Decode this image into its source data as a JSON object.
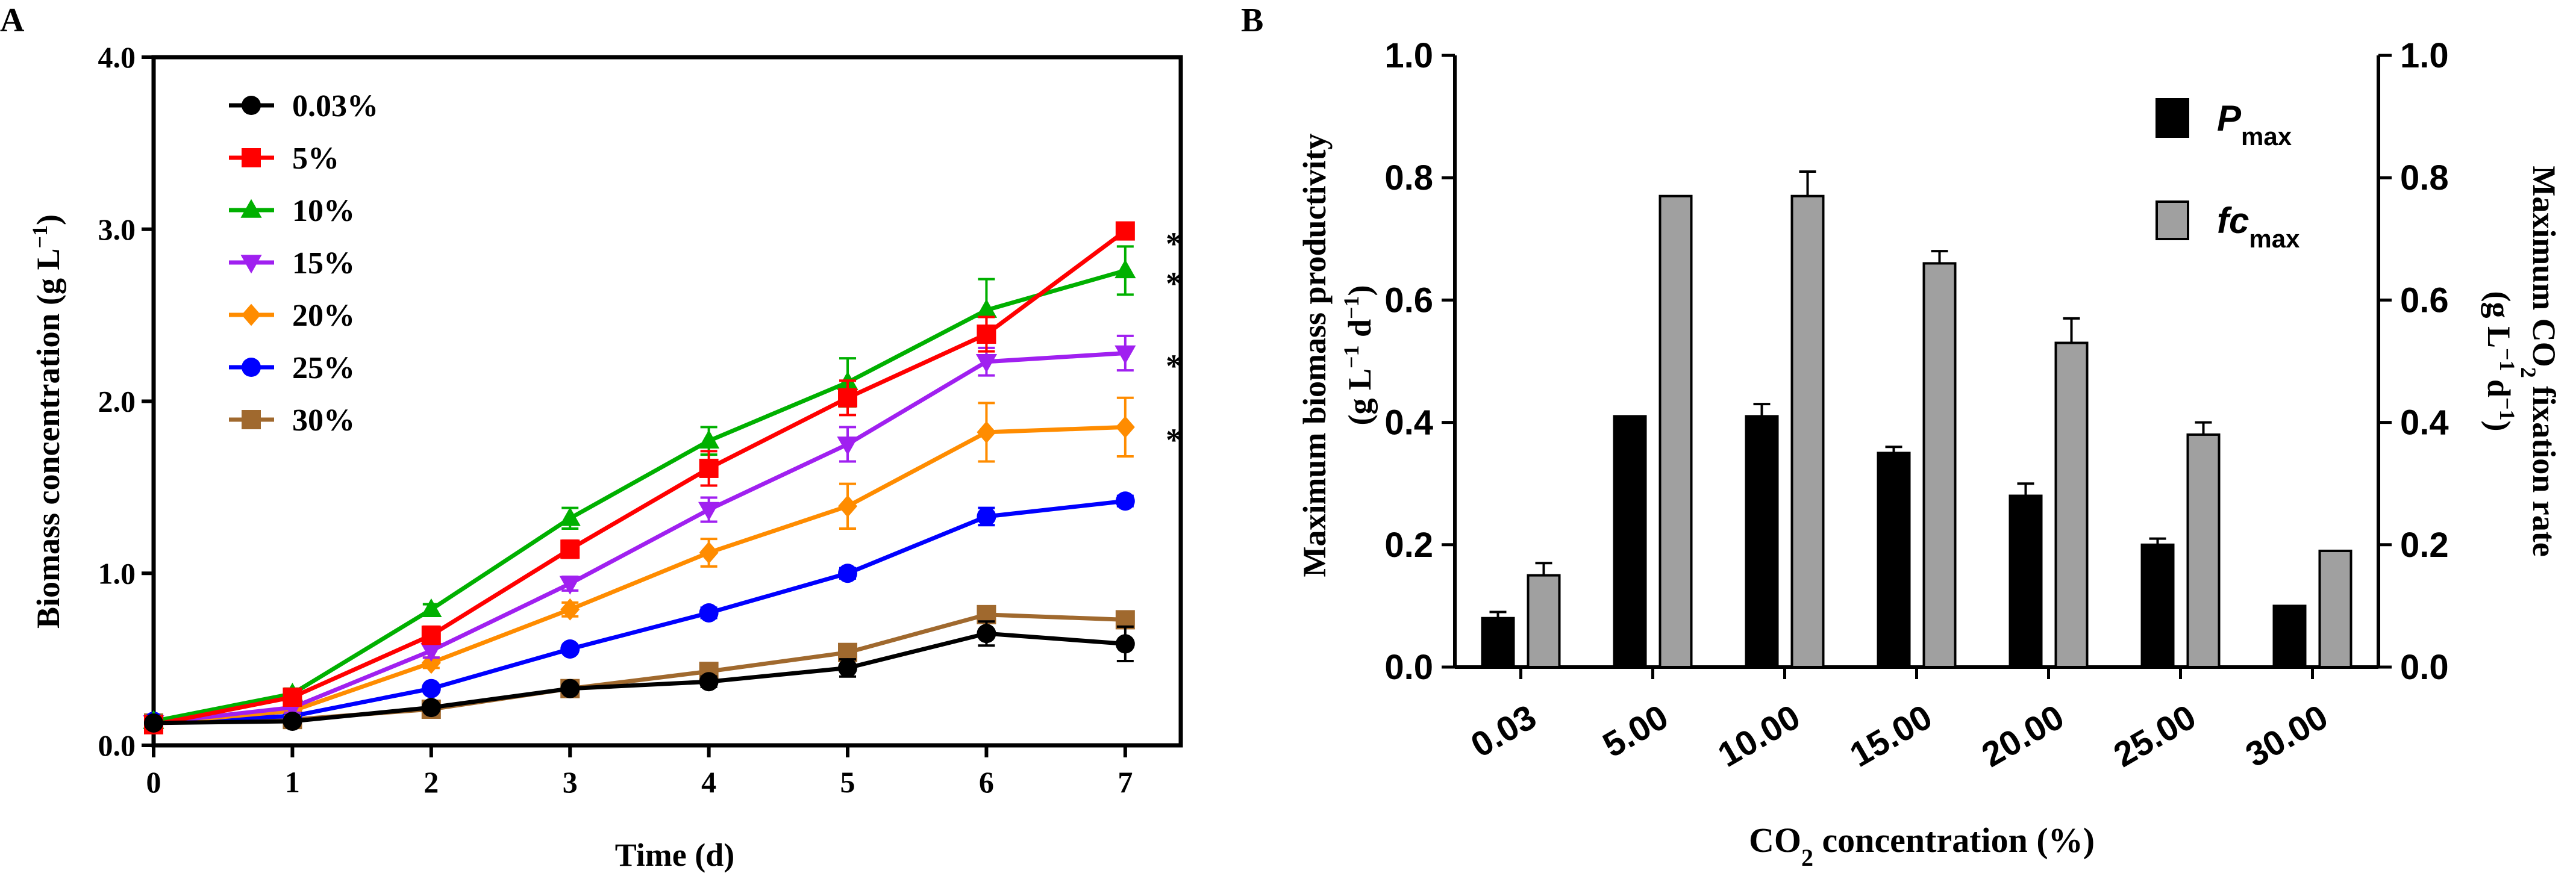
{
  "chart_data": [
    {
      "panel_label": "A",
      "type": "line",
      "xlabel": "Time (d)",
      "ylabel_main": "Biomass concentration (g L",
      "ylabel_sup": "−1",
      "ylabel_close": ")",
      "xlim": [
        0,
        7.4
      ],
      "ylim": [
        0,
        4.0
      ],
      "x_ticks": [
        0,
        1,
        2,
        3,
        4,
        5,
        6,
        7
      ],
      "x_tick_labels": [
        "0",
        "1",
        "2",
        "3",
        "4",
        "5",
        "6",
        "7"
      ],
      "y_ticks": [
        0,
        1,
        2,
        3,
        4
      ],
      "y_tick_labels": [
        "0.0",
        "1.0",
        "2.0",
        "3.0",
        "4.0"
      ],
      "x": [
        0,
        1,
        2,
        3,
        4,
        5,
        6,
        7
      ],
      "legend": "top-left",
      "series": [
        {
          "name": "0.03%",
          "color": "#000000",
          "marker": "circle",
          "values": [
            0.13,
            0.14,
            0.22,
            0.33,
            0.37,
            0.45,
            0.65,
            0.59
          ],
          "errors": [
            0.02,
            0.02,
            0.02,
            0.02,
            0.03,
            0.05,
            0.07,
            0.1
          ]
        },
        {
          "name": "5%",
          "color": "#ff0000",
          "marker": "square",
          "values": [
            0.12,
            0.28,
            0.64,
            1.14,
            1.61,
            2.02,
            2.39,
            2.99
          ],
          "errors": [
            0.02,
            0.02,
            0.05,
            0.05,
            0.1,
            0.1,
            0.1,
            0.0
          ]
        },
        {
          "name": "10%",
          "color": "#00b000",
          "marker": "triangle-up",
          "values": [
            0.14,
            0.3,
            0.79,
            1.32,
            1.77,
            2.11,
            2.53,
            2.76
          ],
          "errors": [
            0.02,
            0.03,
            0.03,
            0.06,
            0.08,
            0.14,
            0.18,
            0.14
          ]
        },
        {
          "name": "15%",
          "color": "#a020f0",
          "marker": "triangle-down",
          "values": [
            0.13,
            0.22,
            0.55,
            0.94,
            1.37,
            1.75,
            2.23,
            2.28
          ],
          "errors": [
            0.02,
            0.03,
            0.04,
            0.04,
            0.07,
            0.1,
            0.08,
            0.1
          ]
        },
        {
          "name": "20%",
          "color": "#ff8c00",
          "marker": "diamond",
          "values": [
            0.13,
            0.2,
            0.48,
            0.79,
            1.12,
            1.39,
            1.82,
            1.85
          ],
          "errors": [
            0.02,
            0.03,
            0.03,
            0.04,
            0.08,
            0.13,
            0.17,
            0.17
          ]
        },
        {
          "name": "25%",
          "color": "#0000ff",
          "marker": "circle",
          "values": [
            0.14,
            0.17,
            0.33,
            0.56,
            0.77,
            1.0,
            1.33,
            1.42
          ],
          "errors": [
            0.02,
            0.02,
            0.02,
            0.02,
            0.03,
            0.03,
            0.05,
            0.03
          ]
        },
        {
          "name": "30%",
          "color": "#a0692e",
          "marker": "square",
          "values": [
            0.13,
            0.15,
            0.21,
            0.33,
            0.43,
            0.54,
            0.76,
            0.73
          ],
          "errors": [
            0.02,
            0.02,
            0.02,
            0.02,
            0.03,
            0.04,
            0.04,
            0.04
          ]
        }
      ],
      "annotations": [
        {
          "text": "*",
          "x": 7.35,
          "y": 2.95
        },
        {
          "text": "*",
          "x": 7.35,
          "y": 2.72
        },
        {
          "text": "*",
          "x": 7.35,
          "y": 2.24
        },
        {
          "text": "*",
          "x": 7.35,
          "y": 1.81
        }
      ]
    },
    {
      "panel_label": "B",
      "type": "bar",
      "xlabel_main": "CO",
      "xlabel_sub": "2",
      "xlabel_tail": " concentration (%)",
      "ylabel_left_line1": "Maximum biomass productivity",
      "ylabel_left_line2_main": "(g L",
      "ylabel_left_line2_sup1": "−1",
      "ylabel_left_line2_mid": " d",
      "ylabel_left_line2_sup2": "−1",
      "ylabel_left_line2_close": ")",
      "ylabel_right_line1_main": "Maximum CO",
      "ylabel_right_line1_sub": "2",
      "ylabel_right_line1_tail": " fixation rate",
      "ylabel_right_line2_main": "(g L",
      "ylabel_right_line2_sup1": "−1",
      "ylabel_right_line2_mid": " d",
      "ylabel_right_line2_sup2": "−1",
      "ylabel_right_line2_close": ")",
      "ylim": [
        0,
        1.0
      ],
      "y_ticks": [
        0,
        0.2,
        0.4,
        0.6,
        0.8,
        1.0
      ],
      "y_tick_labels": [
        "0.0",
        "0.2",
        "0.4",
        "0.6",
        "0.8",
        "1.0"
      ],
      "categories": [
        "0.03",
        "5.00",
        "10.00",
        "15.00",
        "20.00",
        "25.00",
        "30.00"
      ],
      "legend": "top-right",
      "series": [
        {
          "name": "P",
          "name_sub": "max",
          "color": "#000000",
          "values": [
            0.08,
            0.41,
            0.41,
            0.35,
            0.28,
            0.2,
            0.1
          ],
          "errors": [
            0.01,
            0.0,
            0.02,
            0.01,
            0.02,
            0.01,
            0.0
          ]
        },
        {
          "name": "fc",
          "name_sub": "max",
          "color": "#a0a0a0",
          "values": [
            0.15,
            0.77,
            0.77,
            0.66,
            0.53,
            0.38,
            0.19
          ],
          "errors": [
            0.02,
            0.0,
            0.04,
            0.02,
            0.04,
            0.02,
            0.0
          ]
        }
      ]
    }
  ]
}
